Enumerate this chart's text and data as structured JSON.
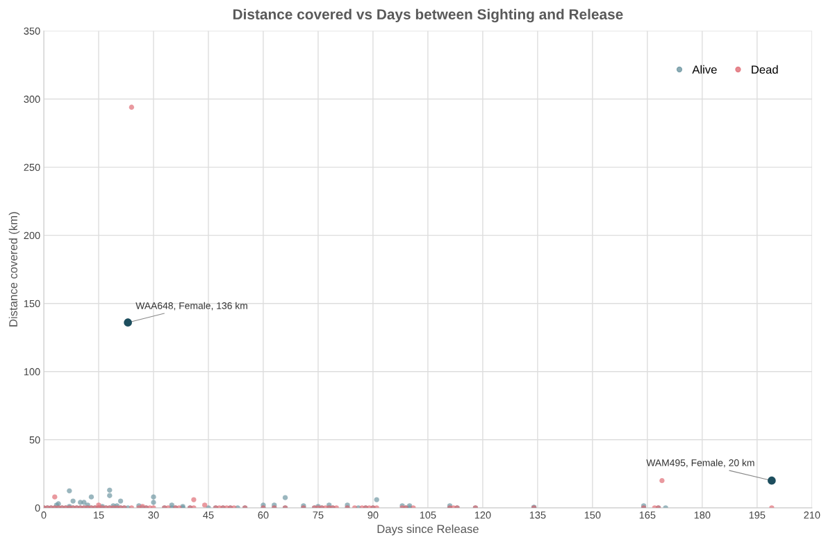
{
  "chart_data": {
    "type": "scatter",
    "title": "Distance covered vs Days between Sighting and Release",
    "xlabel": "Days since Release",
    "ylabel": "Distance covered (km)",
    "xlim": [
      0,
      210
    ],
    "xticks": [
      0,
      15,
      30,
      45,
      60,
      75,
      90,
      105,
      120,
      135,
      150,
      165,
      180,
      195,
      210
    ],
    "ylim": [
      0,
      350
    ],
    "yticks": [
      0,
      50,
      100,
      150,
      200,
      250,
      300,
      350
    ],
    "grid": true,
    "legend": "top right",
    "marker": "circle",
    "series": [
      {
        "name": "Alive",
        "color": "#6f97a2",
        "x": [
          0,
          1,
          2,
          3,
          4,
          5,
          6,
          7,
          8,
          9,
          10,
          11,
          12,
          13,
          14,
          15,
          16,
          17,
          18,
          19,
          20,
          21,
          22,
          23,
          27,
          28,
          33,
          35,
          36,
          38,
          40,
          45,
          47,
          49,
          51,
          53,
          55,
          60,
          63,
          66,
          71,
          74,
          76,
          78,
          79,
          83,
          86,
          88,
          90,
          99,
          100,
          111,
          113,
          118,
          134,
          164,
          168,
          170,
          7,
          18,
          18,
          13,
          30,
          30,
          66,
          91,
          3.5,
          8,
          10,
          11,
          4,
          21,
          35,
          38,
          60,
          63,
          71,
          75,
          78,
          83,
          98,
          100,
          111,
          134,
          164,
          7,
          12,
          15,
          16,
          19,
          20,
          26
        ],
        "values": [
          0,
          0,
          0,
          0,
          0,
          0,
          0,
          0,
          0,
          0,
          0,
          0,
          0,
          0,
          0,
          0,
          0,
          0,
          0,
          0,
          0,
          0,
          0,
          0,
          0,
          0,
          0,
          0,
          0,
          0,
          0,
          0,
          0,
          0,
          0,
          0,
          0,
          0,
          0,
          0,
          0,
          0,
          0,
          0,
          0,
          0,
          0,
          0,
          0,
          0,
          0,
          0,
          0,
          0,
          0,
          0,
          0,
          0,
          12.5,
          13,
          9,
          8,
          8,
          4,
          7.5,
          6,
          2,
          5,
          4,
          4,
          3,
          5,
          2,
          1,
          2,
          2,
          1.5,
          1,
          2,
          2,
          1.5,
          1.5,
          1.5,
          0.5,
          1.5,
          1,
          2,
          null,
          1,
          1.5,
          1.5,
          1.5
        ]
      },
      {
        "name": "Dead",
        "color": "#e06d76",
        "x": [
          0,
          1,
          2,
          3,
          4,
          5,
          6,
          7,
          8,
          9,
          10,
          11,
          12,
          13,
          14,
          15,
          16,
          17,
          18,
          19,
          20,
          21,
          22,
          24,
          26,
          28,
          29,
          30,
          33,
          34,
          36,
          37,
          40,
          41,
          47,
          48,
          49,
          50,
          51,
          52,
          55,
          60,
          63,
          66,
          71,
          74,
          75,
          76,
          77,
          78,
          79,
          80,
          83,
          85,
          87,
          88,
          89,
          90,
          91,
          98,
          99,
          101,
          111,
          112,
          113,
          118,
          134,
          164,
          167,
          168,
          199,
          3,
          41,
          44,
          24,
          169,
          15,
          27
        ],
        "values": [
          0,
          0,
          0,
          0,
          0,
          0,
          0,
          0,
          0,
          0,
          0,
          0,
          0,
          0,
          0,
          0,
          0,
          0,
          0,
          0,
          0,
          0,
          0,
          0,
          0,
          0,
          0,
          0,
          0,
          0,
          0,
          0,
          0,
          0,
          0,
          0,
          0,
          0,
          0,
          0,
          0,
          0,
          0,
          0,
          0,
          0,
          0,
          0,
          0,
          0,
          0,
          0,
          0,
          0,
          0,
          0,
          0,
          0,
          0,
          0,
          0,
          0,
          0,
          0,
          0,
          0,
          0,
          0,
          0,
          0,
          0,
          8,
          6,
          2,
          294,
          20,
          2,
          1
        ]
      },
      {
        "color": "#1d4e5e",
        "x": [
          23,
          199
        ],
        "values": [
          136,
          20
        ]
      }
    ],
    "annotations": [
      {
        "text": "WAA648, Female, 136 km",
        "x": 23,
        "y": 136
      },
      {
        "text": "WAM495, Female, 20 km",
        "x": 199,
        "y": 20
      }
    ]
  }
}
